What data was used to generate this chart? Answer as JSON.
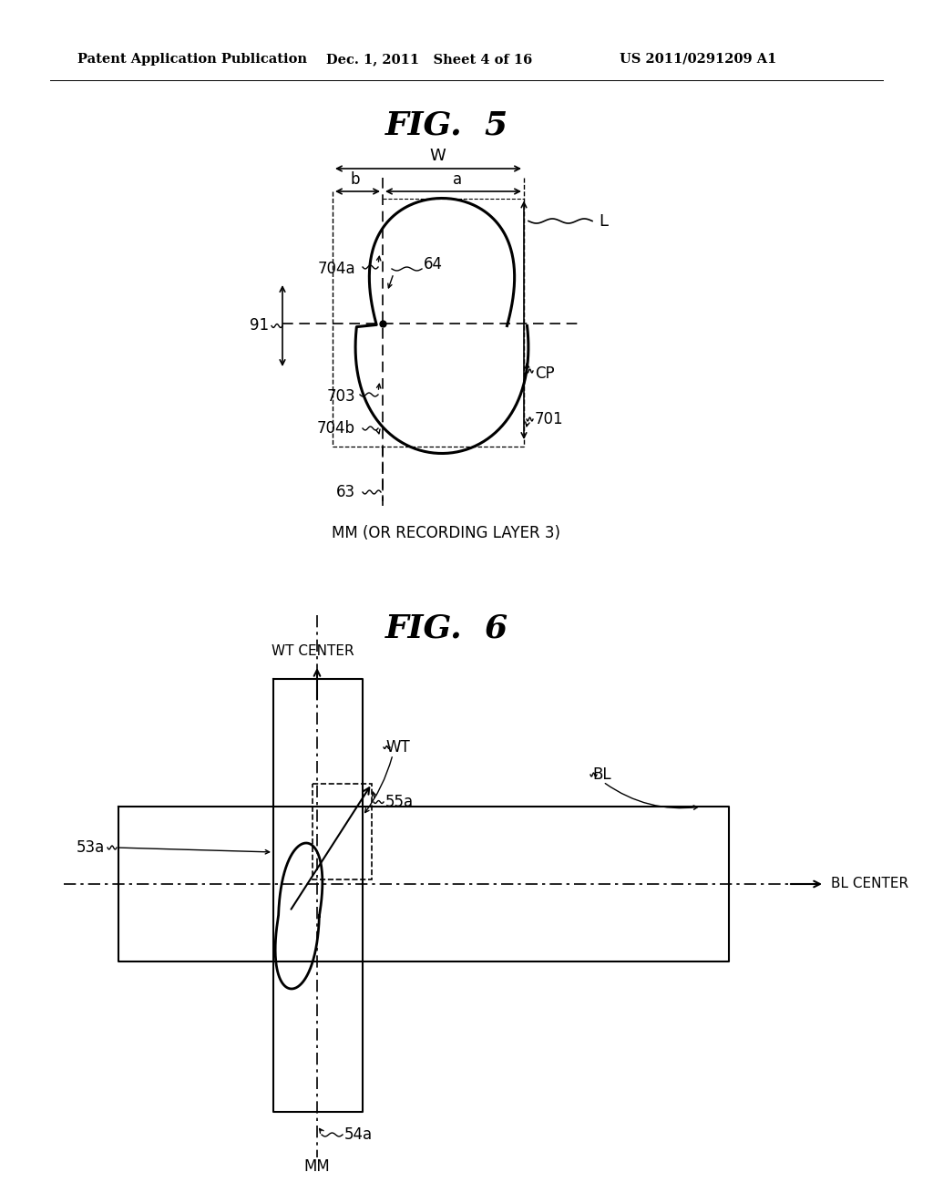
{
  "bg_color": "#ffffff",
  "header_left": "Patent Application Publication",
  "header_mid": "Dec. 1, 2011   Sheet 4 of 16",
  "header_right": "US 2011/0291209 A1",
  "fig5_title": "FIG.  5",
  "fig6_title": "FIG.  6",
  "mm_label": "MM (OR RECORDING LAYER 3)"
}
